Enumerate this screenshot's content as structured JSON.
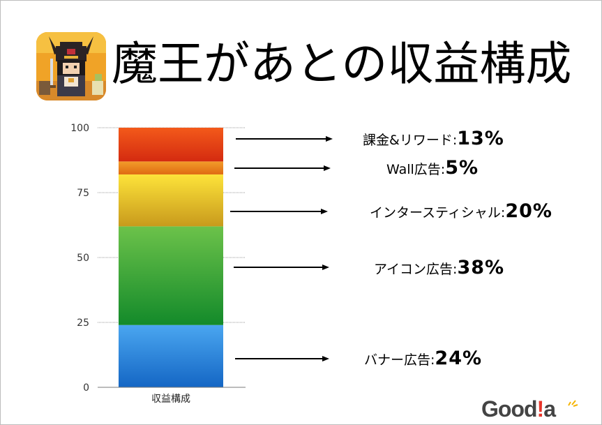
{
  "title": "魔王があとの収益構成",
  "chart_data": {
    "type": "bar",
    "stacked": true,
    "categories": [
      "収益構成"
    ],
    "ylim": [
      0,
      100
    ],
    "yticks": [
      0,
      25,
      50,
      75,
      100
    ],
    "grid": true,
    "series": [
      {
        "name": "バナー広告",
        "values": [
          24
        ],
        "pct_label": "24%",
        "color_top": "#4aa6f0",
        "color_bottom": "#1466c4"
      },
      {
        "name": "アイコン広告",
        "values": [
          38
        ],
        "pct_label": "38%",
        "color_top": "#6cc24a",
        "color_bottom": "#138a2a"
      },
      {
        "name": "インタースティシャル",
        "values": [
          20
        ],
        "pct_label": "20%",
        "color_top": "#fde33a",
        "color_bottom": "#c89a1c"
      },
      {
        "name": "Wall広告",
        "values": [
          5
        ],
        "pct_label": "5%",
        "color_top": "#f29c2a",
        "color_bottom": "#e06a12"
      },
      {
        "name": "課金&リワード",
        "values": [
          13
        ],
        "pct_label": "13%",
        "color_top": "#f35a1a",
        "color_bottom": "#d42a10"
      }
    ]
  },
  "logo": {
    "text_main": "Good",
    "text_bang": "!",
    "text_end": "a"
  },
  "icons": {
    "app": "demon-king-pixel-icon"
  }
}
